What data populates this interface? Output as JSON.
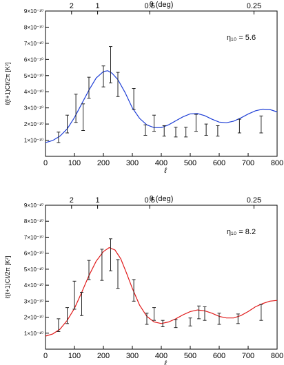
{
  "chart_data": [
    {
      "type": "line",
      "annotation": "η₁₀ = 5.6",
      "xlabel": "ℓ",
      "ylabel": "ℓ(ℓ+1)Cℓ/2π [K²]",
      "top_axis_label": "θ (deg)",
      "top_ticks": [
        {
          "label": "2",
          "x": 90
        },
        {
          "label": "1",
          "x": 180
        },
        {
          "label": "0.5",
          "x": 360
        },
        {
          "label": "0.25",
          "x": 720
        }
      ],
      "xlim": [
        0,
        800
      ],
      "ylim": [
        0,
        9e-10
      ],
      "x_ticks": [
        0,
        100,
        200,
        300,
        400,
        500,
        600,
        700,
        800
      ],
      "y_ticks": [
        1e-10,
        2e-10,
        3e-10,
        4e-10,
        5e-10,
        6e-10,
        7e-10,
        8e-10,
        9e-10
      ],
      "y_tick_labels": [
        "1×10⁻¹⁰",
        "2×10⁻¹⁰",
        "3×10⁻¹⁰",
        "4×10⁻¹⁰",
        "5×10⁻¹⁰",
        "6×10⁻¹⁰",
        "7×10⁻¹⁰",
        "8×10⁻¹⁰",
        "9×10⁻¹⁰"
      ],
      "x_tick_labels": [
        "0",
        "100",
        "200",
        "300",
        "400",
        "500",
        "600",
        "700",
        "800"
      ],
      "curve_color": "#1f3fd6",
      "curve": {
        "x": [
          0,
          25,
          50,
          75,
          100,
          125,
          150,
          175,
          200,
          215,
          230,
          250,
          275,
          300,
          325,
          350,
          375,
          400,
          425,
          450,
          475,
          500,
          525,
          550,
          575,
          600,
          625,
          650,
          675,
          700,
          725,
          750,
          775,
          800
        ],
        "y": [
          8.5e-11,
          9.8e-11,
          1.25e-10,
          1.7e-10,
          2.4e-10,
          3.25e-10,
          4.1e-10,
          4.85e-10,
          5.25e-10,
          5.3e-10,
          5.15e-10,
          4.75e-10,
          3.95e-10,
          3e-10,
          2.35e-10,
          1.95e-10,
          1.78e-10,
          1.78e-10,
          1.95e-10,
          2.2e-10,
          2.45e-10,
          2.63e-10,
          2.65e-10,
          2.52e-10,
          2.3e-10,
          2.12e-10,
          2.08e-10,
          2.18e-10,
          2.38e-10,
          2.62e-10,
          2.82e-10,
          2.92e-10,
          2.9e-10,
          2.75e-10
        ]
      },
      "error_bars": [
        {
          "x": 45,
          "y": 1.15e-10,
          "lo": 8.5e-11,
          "hi": 1.5e-10
        },
        {
          "x": 75,
          "y": 1.95e-10,
          "lo": 1.45e-10,
          "hi": 2.55e-10
        },
        {
          "x": 105,
          "y": 3e-10,
          "lo": 2.1e-10,
          "hi": 3.85e-10
        },
        {
          "x": 130,
          "y": 2.4e-10,
          "lo": 1.6e-10,
          "hi": 3.25e-10
        },
        {
          "x": 150,
          "y": 4.25e-10,
          "lo": 3.6e-10,
          "hi": 4.9e-10
        },
        {
          "x": 200,
          "y": 4.95e-10,
          "lo": 4.3e-10,
          "hi": 5.6e-10
        },
        {
          "x": 225,
          "y": 5.65e-10,
          "lo": 4.55e-10,
          "hi": 6.8e-10
        },
        {
          "x": 250,
          "y": 4.45e-10,
          "lo": 3.7e-10,
          "hi": 5.2e-10
        },
        {
          "x": 305,
          "y": 3.5e-10,
          "lo": 2.9e-10,
          "hi": 4.2e-10
        },
        {
          "x": 345,
          "y": 1.6e-10,
          "lo": 1.3e-10,
          "hi": 1.95e-10
        },
        {
          "x": 375,
          "y": 2.1e-10,
          "lo": 1.55e-10,
          "hi": 2.55e-10
        },
        {
          "x": 410,
          "y": 1.6e-10,
          "lo": 1.25e-10,
          "hi": 1.9e-10
        },
        {
          "x": 450,
          "y": 1.5e-10,
          "lo": 1.2e-10,
          "hi": 1.8e-10
        },
        {
          "x": 485,
          "y": 1.45e-10,
          "lo": 1.2e-10,
          "hi": 1.8e-10
        },
        {
          "x": 520,
          "y": 2e-10,
          "lo": 1.55e-10,
          "hi": 2.6e-10
        },
        {
          "x": 555,
          "y": 1.65e-10,
          "lo": 1.3e-10,
          "hi": 2e-10
        },
        {
          "x": 595,
          "y": 1.55e-10,
          "lo": 1.25e-10,
          "hi": 1.9e-10
        },
        {
          "x": 670,
          "y": 1.85e-10,
          "lo": 1.45e-10,
          "hi": 2.3e-10
        },
        {
          "x": 745,
          "y": 1.95e-10,
          "lo": 1.45e-10,
          "hi": 2.5e-10
        }
      ]
    },
    {
      "type": "line",
      "annotation": "η₁₀ = 8.2",
      "xlabel": "ℓ",
      "ylabel": "ℓ(ℓ+1)Cℓ/2π [K²]",
      "top_axis_label": "θ (deg)",
      "top_ticks": [
        {
          "label": "2",
          "x": 90
        },
        {
          "label": "1",
          "x": 180
        },
        {
          "label": "0.5",
          "x": 360
        },
        {
          "label": "0.25",
          "x": 720
        }
      ],
      "xlim": [
        0,
        800
      ],
      "ylim": [
        0,
        9e-10
      ],
      "x_ticks": [
        0,
        100,
        200,
        300,
        400,
        500,
        600,
        700,
        800
      ],
      "y_ticks": [
        1e-10,
        2e-10,
        3e-10,
        4e-10,
        5e-10,
        6e-10,
        7e-10,
        8e-10,
        9e-10
      ],
      "y_tick_labels": [
        "1×10⁻¹⁰",
        "2×10⁻¹⁰",
        "3×10⁻¹⁰",
        "4×10⁻¹⁰",
        "5×10⁻¹⁰",
        "6×10⁻¹⁰",
        "7×10⁻¹⁰",
        "8×10⁻¹⁰",
        "9×10⁻¹⁰"
      ],
      "x_tick_labels": [
        "0",
        "100",
        "200",
        "300",
        "400",
        "500",
        "600",
        "700",
        "800"
      ],
      "curve_color": "#e01818",
      "curve": {
        "x": [
          0,
          25,
          50,
          75,
          100,
          125,
          150,
          175,
          200,
          220,
          240,
          260,
          280,
          300,
          325,
          350,
          375,
          400,
          425,
          450,
          475,
          500,
          525,
          550,
          575,
          600,
          625,
          650,
          675,
          700,
          725,
          750,
          775,
          800
        ],
        "y": [
          8.2e-11,
          9.5e-11,
          1.25e-10,
          1.8e-10,
          2.55e-10,
          3.55e-10,
          4.6e-10,
          5.5e-10,
          6.1e-10,
          6.35e-10,
          6.2e-10,
          5.65e-10,
          4.75e-10,
          3.8e-10,
          2.75e-10,
          2.05e-10,
          1.7e-10,
          1.6e-10,
          1.7e-10,
          1.9e-10,
          2.15e-10,
          2.35e-10,
          2.45e-10,
          2.4e-10,
          2.25e-10,
          2.05e-10,
          1.95e-10,
          1.95e-10,
          2.1e-10,
          2.35e-10,
          2.65e-10,
          2.85e-10,
          3e-10,
          3.05e-10
        ]
      },
      "error_bars": [
        {
          "x": 45,
          "y": 1.5e-10,
          "lo": 1.1e-10,
          "hi": 1.9e-10
        },
        {
          "x": 75,
          "y": 2.05e-10,
          "lo": 1.6e-10,
          "hi": 2.6e-10
        },
        {
          "x": 100,
          "y": 3.35e-10,
          "lo": 2.5e-10,
          "hi": 4.25e-10
        },
        {
          "x": 125,
          "y": 2.85e-10,
          "lo": 2.1e-10,
          "hi": 3.55e-10
        },
        {
          "x": 150,
          "y": 4.9e-10,
          "lo": 4.35e-10,
          "hi": 5.55e-10
        },
        {
          "x": 195,
          "y": 5.35e-10,
          "lo": 4.3e-10,
          "hi": 6.25e-10
        },
        {
          "x": 225,
          "y": 5.9e-10,
          "lo": 4.9e-10,
          "hi": 6.9e-10
        },
        {
          "x": 250,
          "y": 4.7e-10,
          "lo": 3.8e-10,
          "hi": 5.6e-10
        },
        {
          "x": 305,
          "y": 3.6e-10,
          "lo": 3e-10,
          "hi": 4.35e-10
        },
        {
          "x": 350,
          "y": 1.9e-10,
          "lo": 1.55e-10,
          "hi": 2.25e-10
        },
        {
          "x": 375,
          "y": 2.2e-10,
          "lo": 1.8e-10,
          "hi": 2.6e-10
        },
        {
          "x": 405,
          "y": 1.6e-10,
          "lo": 1.4e-10,
          "hi": 1.8e-10
        },
        {
          "x": 450,
          "y": 1.6e-10,
          "lo": 1.35e-10,
          "hi": 1.85e-10
        },
        {
          "x": 500,
          "y": 1.7e-10,
          "lo": 1.45e-10,
          "hi": 1.95e-10
        },
        {
          "x": 530,
          "y": 2.3e-10,
          "lo": 1.9e-10,
          "hi": 2.7e-10
        },
        {
          "x": 550,
          "y": 2.2e-10,
          "lo": 1.8e-10,
          "hi": 2.65e-10
        },
        {
          "x": 600,
          "y": 1.9e-10,
          "lo": 1.55e-10,
          "hi": 2.25e-10
        },
        {
          "x": 665,
          "y": 1.85e-10,
          "lo": 1.6e-10,
          "hi": 2.2e-10
        },
        {
          "x": 745,
          "y": 2.3e-10,
          "lo": 1.8e-10,
          "hi": 2.8e-10
        }
      ]
    }
  ]
}
